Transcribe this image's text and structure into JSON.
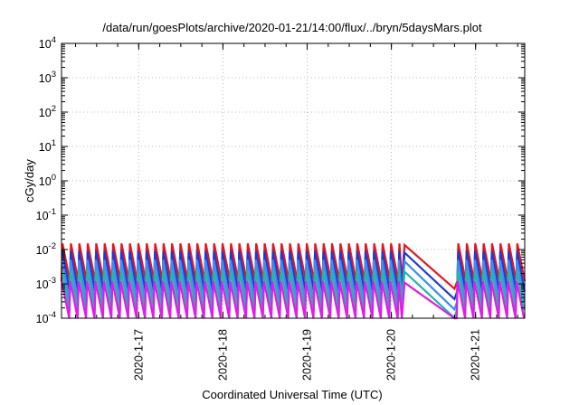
{
  "chart_data": {
    "type": "line",
    "title": "/data/run/goesPlots/archive/2020-01-21/14:00/flux/../bryn/5daysMars.plot",
    "xlabel": "Coordinated Universal Time (UTC)",
    "ylabel": "cGy/day",
    "yscale": "log",
    "ylim": [
      0.0001,
      10000
    ],
    "xlim": [
      "2020-01-16 02:00",
      "2020-01-21 14:00"
    ],
    "grid": true,
    "legend": "none",
    "y_ticks": [
      {
        "base": "10",
        "exp": "-4"
      },
      {
        "base": "10",
        "exp": "-3"
      },
      {
        "base": "10",
        "exp": "-2"
      },
      {
        "base": "10",
        "exp": "-1"
      },
      {
        "base": "10",
        "exp": "0"
      },
      {
        "base": "10",
        "exp": "1"
      },
      {
        "base": "10",
        "exp": "2"
      },
      {
        "base": "10",
        "exp": "3"
      },
      {
        "base": "10",
        "exp": "4"
      }
    ],
    "x_ticks": [
      "2020-1-17",
      "2020-1-18",
      "2020-1-19",
      "2020-1-20",
      "2020-1-21"
    ],
    "pattern": {
      "period_hours": 2.4,
      "gap": [
        "2020-01-20 03:00",
        "2020-01-20 18:00"
      ]
    },
    "series": [
      {
        "color": "#e8141c",
        "max": 0.015,
        "min": 0.0012
      },
      {
        "color": "#1a3cd6",
        "max": 0.009,
        "min": 0.0006
      },
      {
        "color": "#3c8ef0",
        "max": 0.005,
        "min": 0.0003
      },
      {
        "color": "#1fb7a8",
        "max": 0.0025,
        "min": 0.00017
      },
      {
        "color": "#e21ce8",
        "max": 0.0012,
        "min": 0.0001
      }
    ]
  }
}
